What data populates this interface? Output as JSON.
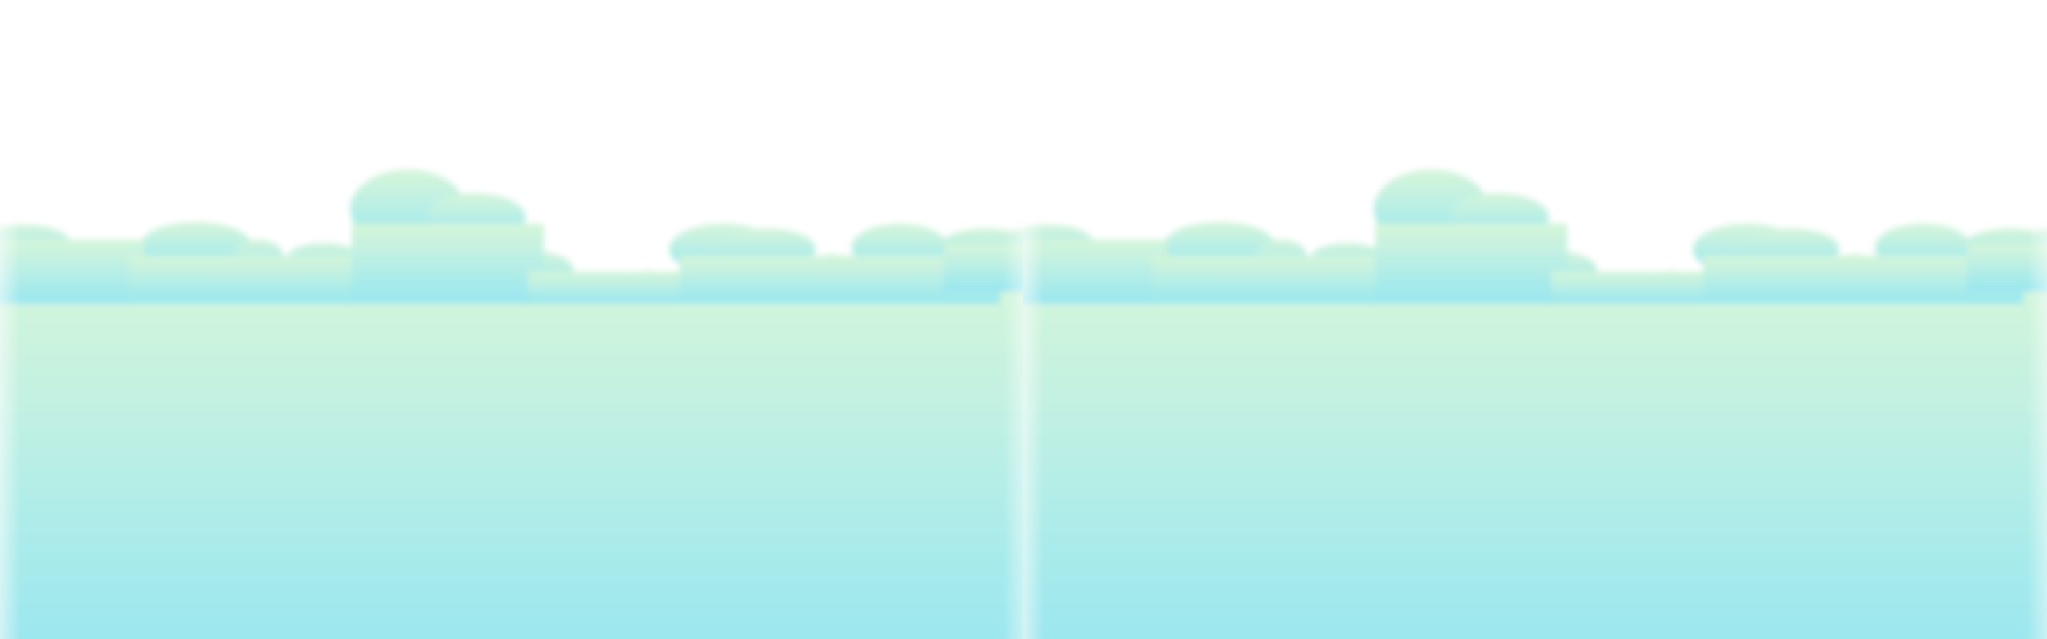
{
  "scene": {
    "description_visible_text": "",
    "colors": {
      "background": "#ffffff",
      "cloud_top": "#d2f5dc",
      "cloud_mid": "#b8f0e6",
      "cloud_bottom": "#9ce8ef",
      "edge_glow": "#e8fbf8"
    },
    "tiles": [
      "cloud-bank-left",
      "cloud-bank-right"
    ]
  }
}
